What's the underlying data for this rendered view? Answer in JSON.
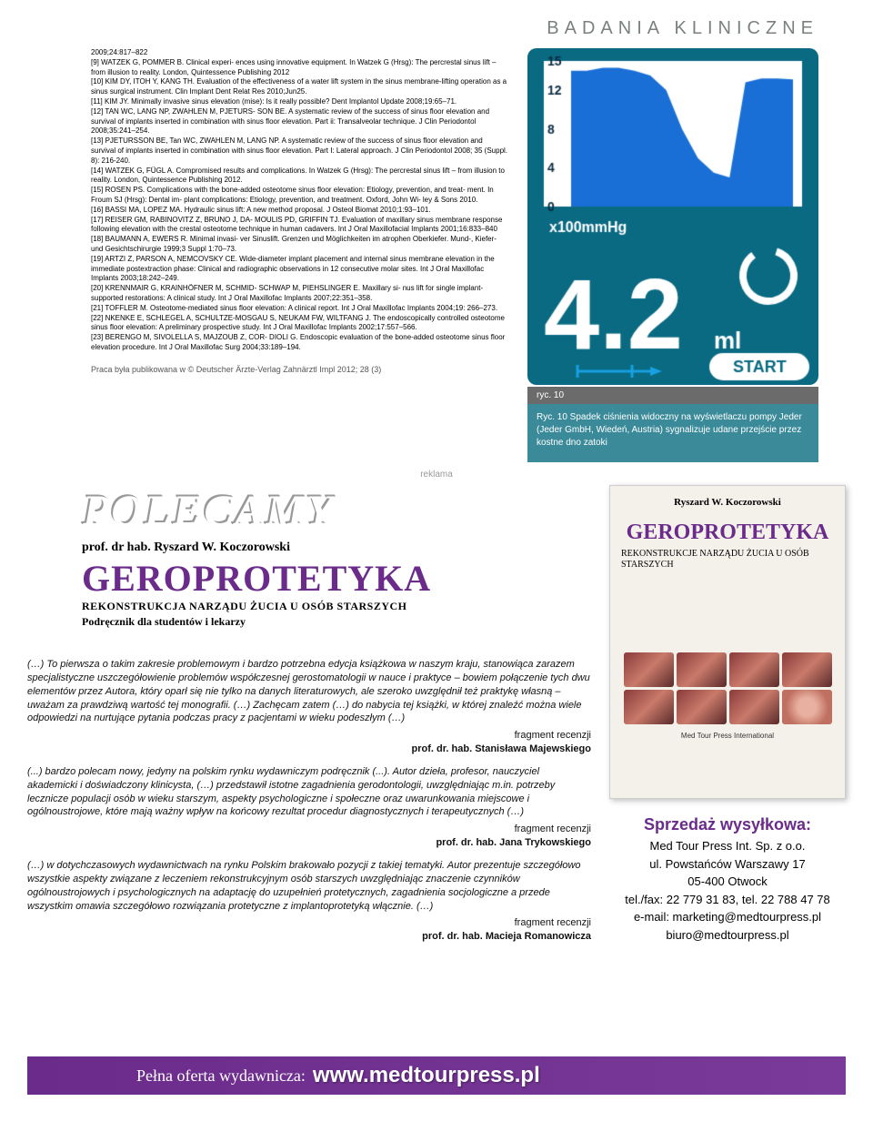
{
  "header": "BADANIA KLINICZNE",
  "references": [
    "2009;24:817–822",
    "[9] WATZEK G, POMMER B. Clinical experi- ences using innovative equipment. In Watzek G (Hrsg): The percrestal sinus lift – from illusion to reality. London, Quintessence Publishing 2012",
    "[10] KIM DY, ITOH Y, KANG TH. Evaluation of the effectiveness of a water lift system in the sinus membrane-lifting operation as a sinus surgical instrument. Clin Implant Dent Relat Res 2010;Jun25.",
    "[11] KIM JY. Minimally invasive sinus elevation (mise): Is it really possible? Dent Implantol Update 2008;19:65–71.",
    "[12] TAN WC, LANG NP, ZWAHLEN M, PJETURS- SON BE. A systematic review of the success of sinus floor elevation and survival of implants inserted in combination with sinus floor elevation. Part ii: Transalveolar technique. J Clin Periodontol 2008;35:241–254.",
    "[13] PJETURSSON BE, Tan WC, ZWAHLEN M, LANG NP. A systematic review of the success of sinus floor elevation and survival of implants inserted in combination with sinus floor elevation. Part I: Lateral approach. J Clin Periodontol 2008; 35 (Suppl. 8): 216-240.",
    "[14] WATZEK G, FÜGL A. Compromised results and complications. In Watzek G (Hrsg): The percrestal sinus lift – from illusion to reality. London, Quintessence Publishing 2012.",
    "[15] ROSEN PS. Complications with the bone-added osteotome sinus floor elevation: Etiology, prevention, and treat- ment. In Froum SJ (Hrsg): Dental im- plant complications: Etiology, prevention, and treatment. Oxford, John Wi- ley & Sons 2010.",
    "[16] BASSI MA, LOPEZ MA. Hydraulic sinus lift: A new method proposal. J Osteol Biomat 2010;1:93–101.",
    "[17] REISER GM, RABINOVITZ Z, BRUNO J, DA- MOULIS PD, GRIFFIN TJ. Evaluation of maxillary sinus membrane response following elevation with the crestal osteotome technique in human cadavers. Int J Oral Maxillofacial Implants 2001;16:833–840",
    "[18] BAUMANN A, EWERS R. Minimal invasi- ver Sinuslift. Grenzen und Möglichkeiten im atrophen Oberkiefer. Mund-, Kiefer- und Gesichtschirurgie 1999;3 Suppl 1:70–73.",
    "[19] ARTZI Z, PARSON A, NEMCOVSKY CE. Wide-diameter implant placement and internal sinus membrane elevation in the immediate postextraction phase: Clinical and radiographic observations in 12 consecutive molar sites. Int J Oral Maxillofac Implants 2003;18:242–249.",
    "[20] KRENNMAIR G, KRAINHÖFNER M, SCHMID- SCHWAP M, PIEHSLINGER E. Maxillary si- nus lift for single implant-supported restorations: A clinical study. Int J Oral Maxillofac Implants 2007;22:351–358.",
    "[21] TOFFLER M. Osteotome-mediated sinus floor elevation: A clinical report. Int J Oral Maxillofac Implants 2004;19: 266–273.",
    "[22] NKENKE E, SCHLEGEL A, SCHULTZE-MOSGAU S, NEUKAM FW, WILTFANG J. The endoscopically controlled osteotome sinus floor elevation: A preliminary prospective study. Int J Oral Maxillofac Implants 2002;17:557–566.",
    "[23] BERENGO M, SIVOLELLA S, MAJZOUB Z, COR- DIOLI G. Endoscopic evaluation of the bone-added osteotome sinus floor elevation procedure. Int J Oral Maxillofac Surg 2004;33:189–194."
  ],
  "pub_note": "Praca była publikowana w © Deutscher Ärzte-Verlag Zahnärztl Impl 2012; 28 (3)",
  "figure": {
    "label": "ryc. 10",
    "caption": "Ryc. 10 Spadek ciśnienia widoczny na wyświetlaczu pompy Jeder (Jeder GmbH, Wiedeń, Austria) sygnalizuje udane przejście przez kostne dno zatoki",
    "screen": {
      "bg_color": "#0a6a82",
      "chart_bg": "#ffffff",
      "curve_fill": "#1a6fd6",
      "y_ticks": [
        "15",
        "12",
        "8",
        "4",
        "0"
      ],
      "y_values": [
        14,
        14,
        14.3,
        14.3,
        14,
        13.5,
        12,
        8,
        5,
        3.5,
        3,
        12.8,
        13.2,
        13.2,
        13.1
      ],
      "x_unit": "x100mmHg",
      "readout": "4.2",
      "readout_unit": "ml",
      "spinner_color": "#ffffff",
      "syringe_color": "#18a0e0",
      "start_label": "START",
      "text_color": "#0a2a40"
    }
  },
  "reklama_label": "reklama",
  "ad": {
    "polecamy": "POLECAMY",
    "prof": "prof. dr hab. Ryszard W. Koczorowski",
    "title": "GEROPROTETYKA",
    "subtitle1": "REKONSTRUKCJA NARZĄDU ŻUCIA U OSÓB STARSZYCH",
    "subtitle2": "Podręcznik dla studentów i lekarzy",
    "cover": {
      "author": "Ryszard W. Koczorowski",
      "title": "GEROPROTETYKA",
      "sub": "REKONSTRUKCJE NARZĄDU ŻUCIA U OSÓB STARSZYCH",
      "publisher": "Med Tour Press International"
    },
    "reviews": [
      {
        "text": "(…) To pierwsza o takim zakresie problemowym i bardzo potrzebna edycja książkowa w naszym kraju, stanowiąca zarazem specjalistyczne uszczegółowienie problemów współczesnej gerostomatologii w nauce i praktyce – bowiem połączenie tych dwu elementów przez Autora, który oparł się nie tylko na danych literaturowych, ale szeroko uwzględnił też praktykę własną – uważam za prawdziwą wartość tej monografii. (…) Zachęcam zatem (…) do nabycia tej książki, w której znaleźć można wiele odpowiedzi na nurtujące pytania podczas pracy z pacjentami w wieku podeszłym (…)",
        "frag": "fragment recenzji",
        "name": "prof. dr. hab. Stanisława Majewskiego"
      },
      {
        "text": "(...) bardzo polecam nowy, jedyny na polskim rynku wydawniczym podręcznik (...). Autor dzieła, profesor, nauczyciel akademicki i doświadczony klinicysta, (…) przedstawił istotne zagadnienia gerodontologii, uwzględniając m.in. potrzeby lecznicze populacji osób w wieku starszym, aspekty psychologiczne i społeczne oraz uwarunkowania miejscowe i ogólnoustrojowe, które mają ważny wpływ na końcowy rezultat procedur diagnostycznych i terapeutycznych (…)",
        "frag": "fragment recenzji",
        "name": "prof. dr. hab. Jana Trykowskiego"
      },
      {
        "text": "(…) w dotychczasowych wydawnictwach na rynku Polskim brakowało pozycji z takiej tematyki. Autor prezentuje szczegółowo wszystkie aspekty związane z leczeniem rekonstrukcyjnym osób starszych uwzględniając znaczenie czynników ogólnoustrojowych i psychologicznych na adaptację do uzupełnień protetycznych, zagadnienia socjologiczne a przede wszystkim omawia szczegółowo rozwiązania protetyczne z implantoprotetyką włącznie. (…)",
        "frag": "fragment recenzji",
        "name": "prof. dr. hab. Macieja Romanowicza"
      }
    ],
    "sales": {
      "title": "Sprzedaż wysyłkowa:",
      "company": "Med Tour Press Int. Sp. z o.o.",
      "street": "ul. Powstańców Warszawy 17",
      "city": "05-400 Otwock",
      "tel": "tel./fax: 22 779 31 83, tel. 22 788 47 78",
      "email": "e-mail: marketing@medtourpress.pl",
      "email2": "biuro@medtourpress.pl"
    },
    "footer": {
      "label": "Pełna oferta wydawnicza:",
      "url": "www.medtourpress.pl"
    }
  }
}
